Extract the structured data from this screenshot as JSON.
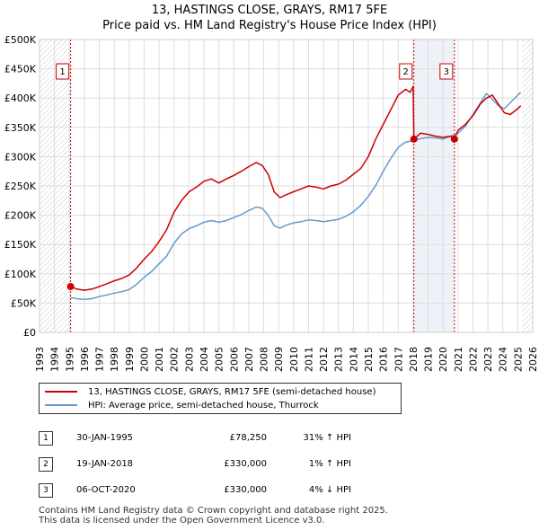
{
  "title_line1": "13, HASTINGS CLOSE, GRAYS, RM17 5FE",
  "title_line2": "Price paid vs. HM Land Registry's House Price Index (HPI)",
  "chart_data": {
    "type": "line",
    "title": "Price paid vs. HM Land Registry's House Price Index (HPI)",
    "xlabel": "",
    "ylabel": "",
    "xlim": [
      1993,
      2026
    ],
    "ylim": [
      0,
      500000
    ],
    "x_ticks": [
      "1993",
      "1994",
      "1995",
      "1996",
      "1997",
      "1998",
      "1999",
      "2000",
      "2001",
      "2002",
      "2003",
      "2004",
      "2005",
      "2006",
      "2007",
      "2008",
      "2009",
      "2010",
      "2011",
      "2012",
      "2013",
      "2014",
      "2015",
      "2016",
      "2017",
      "2018",
      "2019",
      "2020",
      "2021",
      "2022",
      "2023",
      "2024",
      "2025",
      "2026"
    ],
    "y_ticks": [
      {
        "value": 0,
        "label": "£0"
      },
      {
        "value": 50000,
        "label": "£50K"
      },
      {
        "value": 100000,
        "label": "£100K"
      },
      {
        "value": 150000,
        "label": "£150K"
      },
      {
        "value": 200000,
        "label": "£200K"
      },
      {
        "value": 250000,
        "label": "£250K"
      },
      {
        "value": 300000,
        "label": "£300K"
      },
      {
        "value": 350000,
        "label": "£350K"
      },
      {
        "value": 400000,
        "label": "£400K"
      },
      {
        "value": 450000,
        "label": "£450K"
      },
      {
        "value": 500000,
        "label": "£500K"
      }
    ],
    "grid": true,
    "hatched_ranges": [
      [
        1993,
        1995.08
      ],
      [
        2025.3,
        2026
      ]
    ],
    "shaded_ranges": [
      [
        2018.05,
        2020.76
      ]
    ],
    "series": [
      {
        "name": "13, HASTINGS CLOSE, GRAYS, RM17 5FE (semi-detached house)",
        "color": "#cc0000",
        "x": [
          1995.08,
          1995.5,
          1996,
          1996.5,
          1997,
          1997.5,
          1998,
          1998.5,
          1999,
          1999.5,
          2000,
          2000.5,
          2001,
          2001.5,
          2002,
          2002.5,
          2003,
          2003.5,
          2004,
          2004.5,
          2005,
          2005.5,
          2006,
          2006.5,
          2007,
          2007.5,
          2007.9,
          2008.3,
          2008.7,
          2009.1,
          2009.5,
          2010,
          2010.5,
          2011,
          2011.5,
          2012,
          2012.5,
          2013,
          2013.5,
          2014,
          2014.5,
          2015,
          2015.5,
          2016,
          2016.5,
          2017,
          2017.5,
          2017.8,
          2018.0,
          2018.05,
          2018.5,
          2019,
          2019.5,
          2020,
          2020.5,
          2020.76,
          2021,
          2021.5,
          2022,
          2022.5,
          2022.9,
          2023.3,
          2023.7,
          2024.1,
          2024.5,
          2025,
          2025.2
        ],
        "y": [
          78250,
          74000,
          72000,
          74000,
          78000,
          83000,
          88000,
          92000,
          98000,
          110000,
          125000,
          138000,
          155000,
          175000,
          205000,
          225000,
          240000,
          248000,
          258000,
          262000,
          255000,
          262000,
          268000,
          275000,
          283000,
          290000,
          285000,
          270000,
          240000,
          230000,
          235000,
          240000,
          245000,
          250000,
          248000,
          245000,
          250000,
          253000,
          260000,
          270000,
          280000,
          300000,
          330000,
          355000,
          380000,
          405000,
          415000,
          410000,
          420000,
          330000,
          340000,
          338000,
          335000,
          333000,
          335000,
          330000,
          345000,
          355000,
          370000,
          390000,
          400000,
          405000,
          390000,
          375000,
          372000,
          382000,
          387000
        ]
      },
      {
        "name": "HPI: Average price, semi-detached house, Thurrock",
        "color": "#6699cc",
        "x": [
          1995.08,
          1995.5,
          1996,
          1996.5,
          1997,
          1997.5,
          1998,
          1998.5,
          1999,
          1999.5,
          2000,
          2000.5,
          2001,
          2001.5,
          2002,
          2002.5,
          2003,
          2003.5,
          2004,
          2004.5,
          2005,
          2005.5,
          2006,
          2006.5,
          2007,
          2007.5,
          2007.9,
          2008.3,
          2008.7,
          2009.1,
          2009.5,
          2010,
          2010.5,
          2011,
          2011.5,
          2012,
          2012.5,
          2013,
          2013.5,
          2014,
          2014.5,
          2015,
          2015.5,
          2016,
          2016.5,
          2017,
          2017.5,
          2018,
          2018.5,
          2019,
          2019.5,
          2020,
          2020.5,
          2021,
          2021.5,
          2022,
          2022.5,
          2022.9,
          2023.3,
          2023.7,
          2024.1,
          2024.5,
          2025,
          2025.2
        ],
        "y": [
          59500,
          57500,
          56500,
          57500,
          61000,
          64000,
          67000,
          69500,
          73000,
          82000,
          94000,
          104000,
          117000,
          130000,
          152000,
          168000,
          177000,
          182000,
          188000,
          191000,
          188000,
          191000,
          196000,
          201000,
          208000,
          214000,
          212000,
          200000,
          182000,
          178000,
          183000,
          187000,
          189000,
          192000,
          191000,
          189000,
          191000,
          193000,
          198000,
          206000,
          217000,
          232000,
          251000,
          275000,
          297000,
          316000,
          325000,
          327000,
          331000,
          333000,
          332000,
          330000,
          335000,
          340000,
          352000,
          372000,
          392000,
          408000,
          398000,
          387000,
          382000,
          392000,
          405000,
          410000
        ]
      }
    ],
    "sales": [
      {
        "num": "1",
        "date": "30-JAN-1995",
        "price": "£78,250",
        "hpi": "31% ↑ HPI",
        "x": 1995.08,
        "y": 78250
      },
      {
        "num": "2",
        "date": "19-JAN-2018",
        "price": "£330,000",
        "hpi": "1% ↑ HPI",
        "x": 2018.05,
        "y": 330000
      },
      {
        "num": "3",
        "date": "06-OCT-2020",
        "price": "£330,000",
        "hpi": "4% ↓ HPI",
        "x": 2020.76,
        "y": 330000
      }
    ]
  },
  "legend": {
    "property_label": "13, HASTINGS CLOSE, GRAYS, RM17 5FE (semi-detached house)",
    "hpi_label": "HPI: Average price, semi-detached house, Thurrock",
    "property_color": "#cc0000",
    "hpi_color": "#6699cc"
  },
  "footer": {
    "line1": "Contains HM Land Registry data © Crown copyright and database right 2025.",
    "line2": "This data is licensed under the Open Government Licence v3.0."
  }
}
